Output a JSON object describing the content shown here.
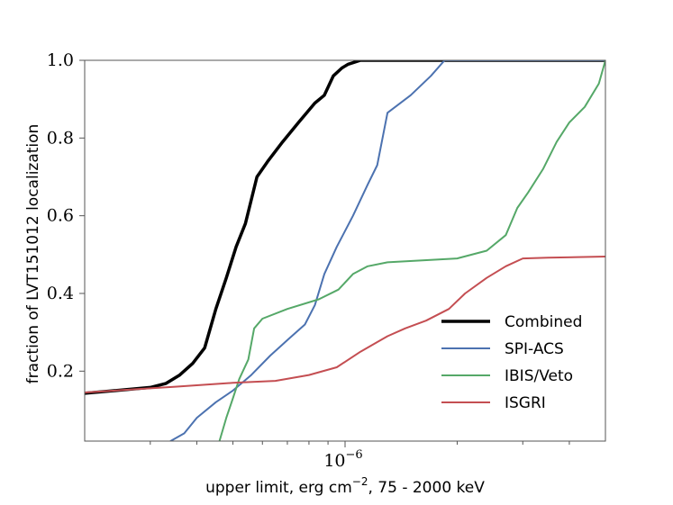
{
  "chart_data": {
    "type": "line",
    "title": "",
    "xlabel": "upper limit, erg cm",
    "xlabel_sup": "−2",
    "xlabel_tail": ", 75 - 2000 keV",
    "ylabel": "fraction of LVT151012 localization",
    "xscale": "log",
    "xlim": [
      2e-07,
      5e-06
    ],
    "ylim": [
      0.02,
      1.0
    ],
    "x_major_ticks": [
      {
        "value": 1e-06,
        "base": "10",
        "exp": "−6"
      }
    ],
    "x_minor_ticks": [
      3e-07,
      4e-07,
      5e-07,
      6e-07,
      7e-07,
      8e-07,
      9e-07,
      2e-06,
      3e-06,
      4e-06
    ],
    "y_ticks": [
      {
        "value": 0.2,
        "label": "0.2"
      },
      {
        "value": 0.4,
        "label": "0.4"
      },
      {
        "value": 0.6,
        "label": "0.6"
      },
      {
        "value": 0.8,
        "label": "0.8"
      },
      {
        "value": 1.0,
        "label": "1.0"
      }
    ],
    "legend_position": "lower-right",
    "series": [
      {
        "name": "Combined",
        "color": "#000000",
        "width": 3.5,
        "points": [
          [
            2e-07,
            0.143
          ],
          [
            3e-07,
            0.158
          ],
          [
            3.3e-07,
            0.168
          ],
          [
            3.6e-07,
            0.19
          ],
          [
            3.9e-07,
            0.22
          ],
          [
            4.2e-07,
            0.26
          ],
          [
            4.5e-07,
            0.36
          ],
          [
            4.8e-07,
            0.44
          ],
          [
            5.1e-07,
            0.52
          ],
          [
            5.4e-07,
            0.58
          ],
          [
            5.8e-07,
            0.7
          ],
          [
            6.2e-07,
            0.74
          ],
          [
            6.8e-07,
            0.79
          ],
          [
            7.5e-07,
            0.84
          ],
          [
            8.3e-07,
            0.89
          ],
          [
            8.8e-07,
            0.91
          ],
          [
            9.3e-07,
            0.96
          ],
          [
            9.8e-07,
            0.98
          ],
          [
            1.02e-06,
            0.99
          ],
          [
            1.1e-06,
            1.0
          ],
          [
            5e-06,
            1.0
          ]
        ]
      },
      {
        "name": "SPI-ACS",
        "color": "#4c72b0",
        "width": 2.0,
        "points": [
          [
            3.4e-07,
            0.02
          ],
          [
            3.7e-07,
            0.04
          ],
          [
            4e-07,
            0.08
          ],
          [
            4.5e-07,
            0.12
          ],
          [
            5e-07,
            0.15
          ],
          [
            5.6e-07,
            0.19
          ],
          [
            6.3e-07,
            0.24
          ],
          [
            7e-07,
            0.28
          ],
          [
            7.8e-07,
            0.32
          ],
          [
            8.3e-07,
            0.37
          ],
          [
            8.8e-07,
            0.45
          ],
          [
            9.5e-07,
            0.52
          ],
          [
            1.05e-06,
            0.6
          ],
          [
            1.15e-06,
            0.68
          ],
          [
            1.22e-06,
            0.73
          ],
          [
            1.3e-06,
            0.865
          ],
          [
            1.5e-06,
            0.91
          ],
          [
            1.7e-06,
            0.96
          ],
          [
            1.85e-06,
            1.0
          ],
          [
            5e-06,
            1.0
          ]
        ]
      },
      {
        "name": "IBIS/Veto",
        "color": "#55a868",
        "width": 2.0,
        "points": [
          [
            4.6e-07,
            0.02
          ],
          [
            4.8e-07,
            0.08
          ],
          [
            5e-07,
            0.13
          ],
          [
            5.2e-07,
            0.18
          ],
          [
            5.5e-07,
            0.23
          ],
          [
            5.7e-07,
            0.31
          ],
          [
            6e-07,
            0.335
          ],
          [
            7e-07,
            0.36
          ],
          [
            8.5e-07,
            0.385
          ],
          [
            9.6e-07,
            0.41
          ],
          [
            1.05e-06,
            0.45
          ],
          [
            1.15e-06,
            0.47
          ],
          [
            1.3e-06,
            0.48
          ],
          [
            2e-06,
            0.49
          ],
          [
            2.4e-06,
            0.51
          ],
          [
            2.7e-06,
            0.55
          ],
          [
            2.9e-06,
            0.62
          ],
          [
            3.1e-06,
            0.66
          ],
          [
            3.4e-06,
            0.72
          ],
          [
            3.7e-06,
            0.79
          ],
          [
            4e-06,
            0.84
          ],
          [
            4.4e-06,
            0.88
          ],
          [
            4.8e-06,
            0.94
          ],
          [
            5e-06,
            1.0
          ]
        ]
      },
      {
        "name": "ISGRI",
        "color": "#c44e52",
        "width": 2.0,
        "points": [
          [
            2e-07,
            0.145
          ],
          [
            3.5e-07,
            0.16
          ],
          [
            5e-07,
            0.17
          ],
          [
            6.5e-07,
            0.175
          ],
          [
            8e-07,
            0.19
          ],
          [
            9.5e-07,
            0.21
          ],
          [
            1.1e-06,
            0.25
          ],
          [
            1.3e-06,
            0.29
          ],
          [
            1.45e-06,
            0.31
          ],
          [
            1.65e-06,
            0.33
          ],
          [
            1.9e-06,
            0.36
          ],
          [
            2.1e-06,
            0.4
          ],
          [
            2.4e-06,
            0.44
          ],
          [
            2.7e-06,
            0.47
          ],
          [
            3e-06,
            0.49
          ],
          [
            3.5e-06,
            0.492
          ],
          [
            5e-06,
            0.495
          ]
        ]
      }
    ]
  }
}
